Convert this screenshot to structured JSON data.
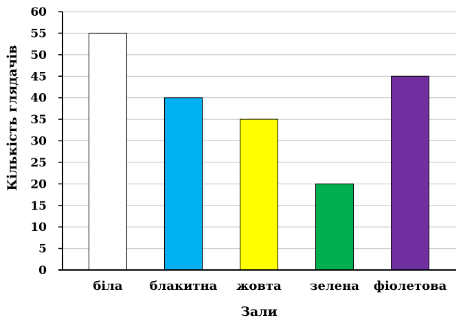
{
  "chart_data": {
    "type": "bar",
    "title": "",
    "xlabel": "Зали",
    "ylabel": "Кількість глядачів",
    "categories": [
      "біла",
      "блакитна",
      "жовта",
      "зелена",
      "фіолетова"
    ],
    "values": [
      55,
      40,
      35,
      20,
      45
    ],
    "colors": [
      "#ffffff",
      "#00b0f0",
      "#ffff00",
      "#00b050",
      "#7030a0"
    ],
    "ylim": [
      0,
      60
    ],
    "yticks": [
      0,
      5,
      10,
      15,
      20,
      25,
      30,
      35,
      40,
      45,
      50,
      55,
      60
    ],
    "grid": true,
    "legend": "none"
  }
}
